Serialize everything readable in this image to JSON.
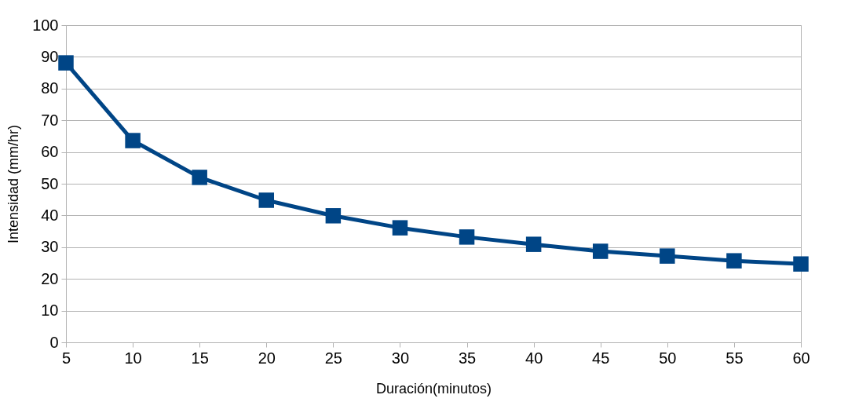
{
  "chart_data": {
    "type": "line",
    "xlabel": "Duración(minutos)",
    "ylabel": "Intensidad (mm/hr)",
    "x": [
      5,
      10,
      15,
      20,
      25,
      30,
      35,
      40,
      45,
      50,
      55,
      60
    ],
    "series": [
      {
        "color": "#004586",
        "values": [
          88.1,
          63.6,
          52,
          44.8,
          39.9,
          36.1,
          33.2,
          30.9,
          28.7,
          27.2,
          25.7,
          24.7
        ]
      }
    ],
    "xlim": [
      5,
      60
    ],
    "xticks": [
      5,
      10,
      15,
      20,
      25,
      30,
      35,
      40,
      45,
      50,
      55,
      60
    ],
    "ylim": [
      0,
      100
    ],
    "yticks": [
      0,
      10,
      20,
      30,
      40,
      50,
      60,
      70,
      80,
      90,
      100
    ],
    "grid": "y",
    "marker": "square",
    "line_style": "solid"
  }
}
